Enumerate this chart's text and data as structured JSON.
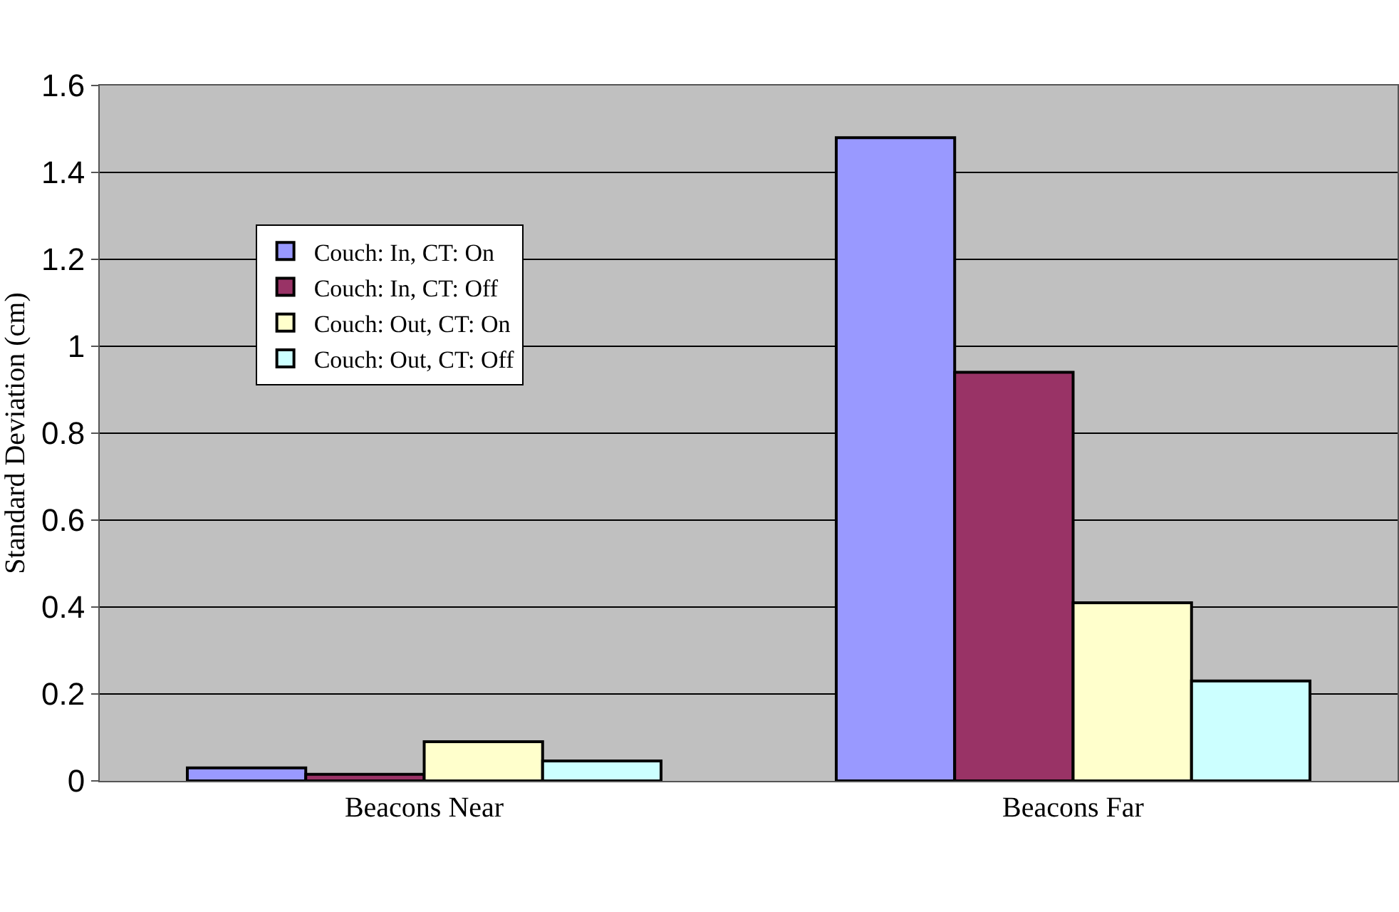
{
  "chart_data": {
    "type": "bar",
    "ylabel": "Standard Deviation (cm)",
    "categories": [
      "Beacons Near",
      "Beacons Far"
    ],
    "series": [
      {
        "name": "Couch: In, CT: On",
        "color": "#9999ff",
        "values": [
          0.03,
          1.48
        ]
      },
      {
        "name": "Couch: In, CT: Off",
        "color": "#993366",
        "values": [
          0.015,
          0.94
        ]
      },
      {
        "name": "Couch: Out, CT: On",
        "color": "#ffffcc",
        "values": [
          0.09,
          0.41
        ]
      },
      {
        "name": "Couch: Out, CT: Off",
        "color": "#ccffff",
        "values": [
          0.046,
          0.23
        ]
      }
    ],
    "ylim": [
      0,
      1.6
    ],
    "yticks": [
      0,
      0.2,
      0.4,
      0.6,
      0.8,
      1,
      1.2,
      1.4,
      1.6
    ],
    "grid": "y",
    "legend": "top left"
  }
}
